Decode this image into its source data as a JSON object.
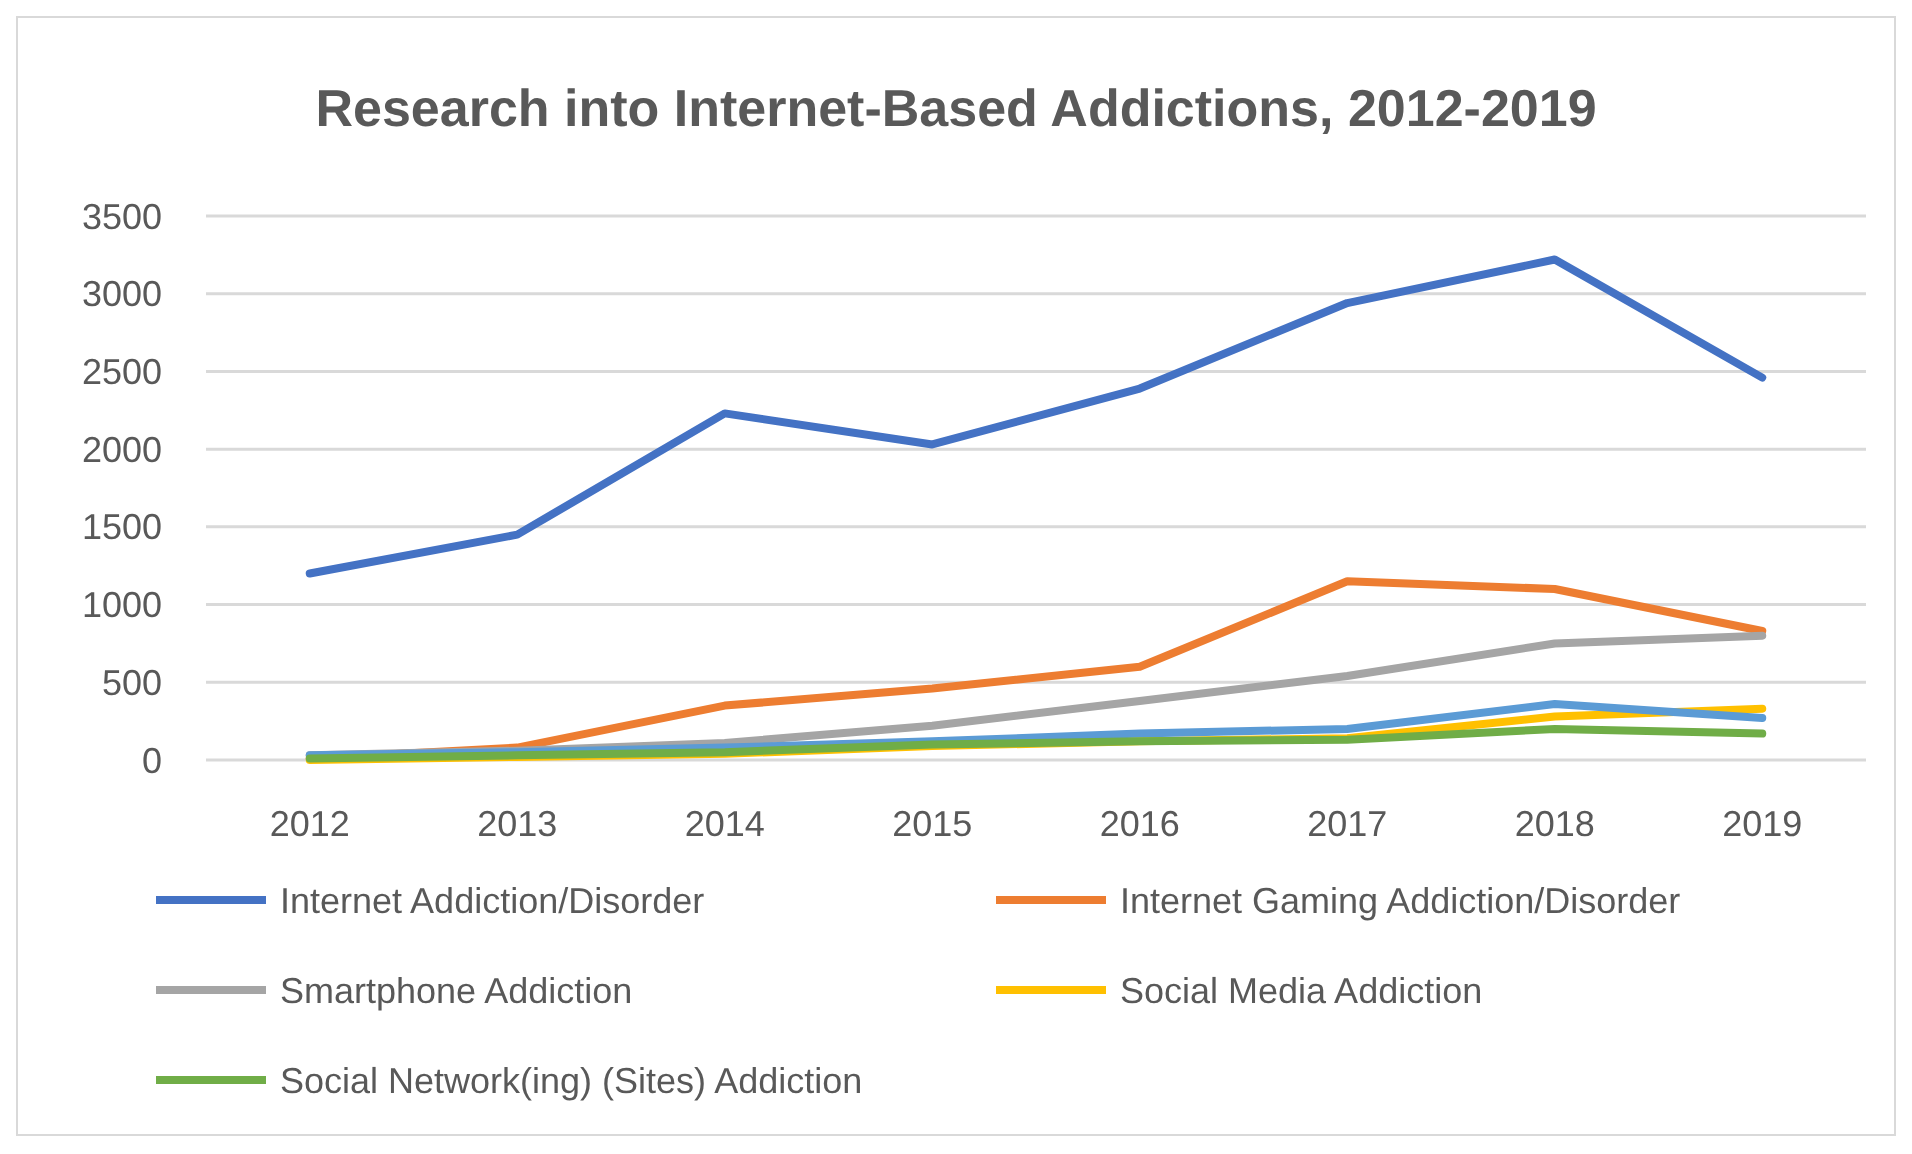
{
  "chart_data": {
    "type": "line",
    "title": "Research into Internet-Based Addictions, 2012-2019",
    "categories": [
      "2012",
      "2013",
      "2014",
      "2015",
      "2016",
      "2017",
      "2018",
      "2019"
    ],
    "ylim": [
      0,
      3500
    ],
    "yticks": [
      0,
      500,
      1000,
      1500,
      2000,
      2500,
      3000,
      3500
    ],
    "grid": "y",
    "legend": "bottom",
    "marker": "none",
    "line_style": "solid",
    "series": [
      {
        "name": "Internet Addiction/Disorder",
        "color": "#4472c4",
        "values": [
          1200,
          1450,
          2230,
          2030,
          2390,
          2940,
          3220,
          2460
        ]
      },
      {
        "name": "Internet Gaming Addiction/Disorder",
        "color": "#ed7d31",
        "values": [
          10,
          80,
          350,
          460,
          600,
          1150,
          1100,
          830
        ]
      },
      {
        "name": "Smartphone Addiction",
        "color": "#a5a5a5",
        "values": [
          30,
          60,
          110,
          220,
          380,
          540,
          750,
          800
        ]
      },
      {
        "name": "Social Media Addiction",
        "color": "#ffc000",
        "values": [
          0,
          20,
          40,
          90,
          120,
          140,
          280,
          330
        ]
      },
      {
        "color": "#5b9bd5",
        "values": [
          30,
          50,
          80,
          120,
          170,
          200,
          360,
          270
        ]
      },
      {
        "name": "Social Network(ing) (Sites) Addiction",
        "color": "#70ad47",
        "values": [
          10,
          30,
          50,
          100,
          120,
          130,
          200,
          170
        ]
      }
    ]
  }
}
